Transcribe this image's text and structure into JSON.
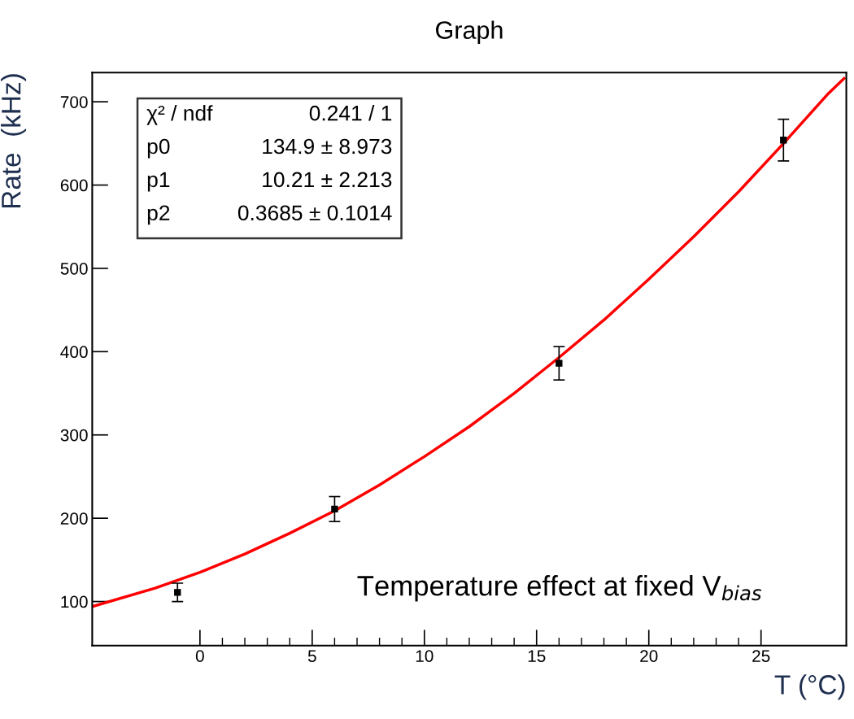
{
  "chart_data": {
    "type": "scatter",
    "title": "Graph",
    "xlabel": "T (°C)",
    "ylabel": "Rate  (kHz)",
    "xlim": [
      -4.8,
      28.8
    ],
    "ylim": [
      47,
      735
    ],
    "xticks": [
      0,
      5,
      10,
      15,
      20,
      25
    ],
    "yticks": [
      100,
      200,
      300,
      400,
      500,
      600,
      700
    ],
    "grid": false,
    "marker": "square",
    "series": [
      {
        "type": "line",
        "marker": "none",
        "color": "#ff0000",
        "x": [
          -4.8,
          -2,
          0,
          2,
          4,
          6,
          8,
          10,
          12,
          14,
          16,
          18,
          20,
          22,
          24,
          26,
          28,
          28.7
        ],
        "values": [
          94,
          116,
          135,
          157,
          182,
          209,
          240,
          274,
          310,
          350,
          393,
          438,
          487,
          538,
          592,
          650,
          710,
          728
        ]
      },
      {
        "color": "#000000",
        "x": [
          -1,
          6,
          16,
          26
        ],
        "values": [
          111,
          211,
          386,
          654
        ],
        "errors": [
          11,
          15,
          20,
          25
        ]
      }
    ],
    "annotations": [
      "χ² / ndf",
      "0.241 / 1",
      "p0",
      "134.9 ± 8.973",
      "p1",
      "10.21 ± 2.213",
      "p2",
      "0.3685 ± 0.1014",
      "Temperature effect at fixed V$_{bias}$"
    ]
  }
}
